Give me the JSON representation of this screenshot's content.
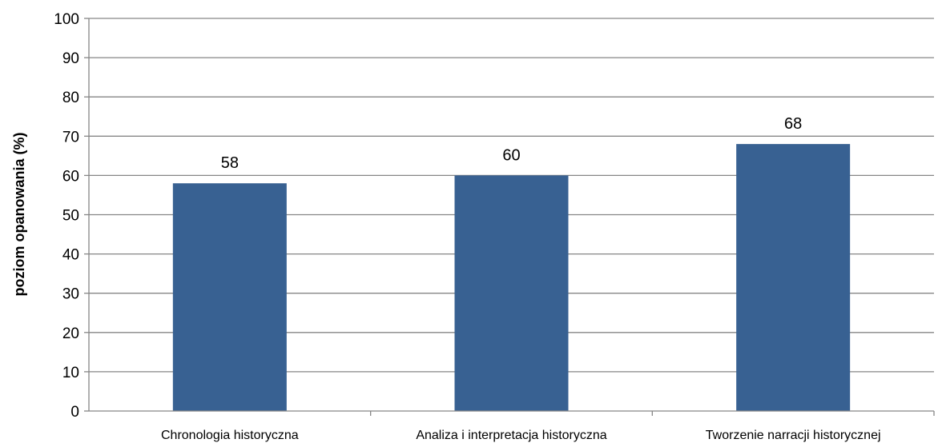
{
  "chart_data": {
    "type": "bar",
    "title": "",
    "xlabel": "",
    "ylabel": "poziom opanowania (%)",
    "categories": [
      "Chronologia historyczna",
      "Analiza i interpretacja historyczna",
      "Tworzenie narracji historycznej"
    ],
    "values": [
      58,
      60,
      68
    ],
    "data_labels": [
      "58",
      "60",
      "68"
    ],
    "ylim": [
      0,
      100
    ],
    "yticks": [
      0,
      10,
      20,
      30,
      40,
      50,
      60,
      70,
      80,
      90,
      100
    ],
    "grid": true,
    "legend": "none",
    "colors": {
      "bar": "#386192",
      "grid": "#868686",
      "axis": "#868686"
    }
  }
}
